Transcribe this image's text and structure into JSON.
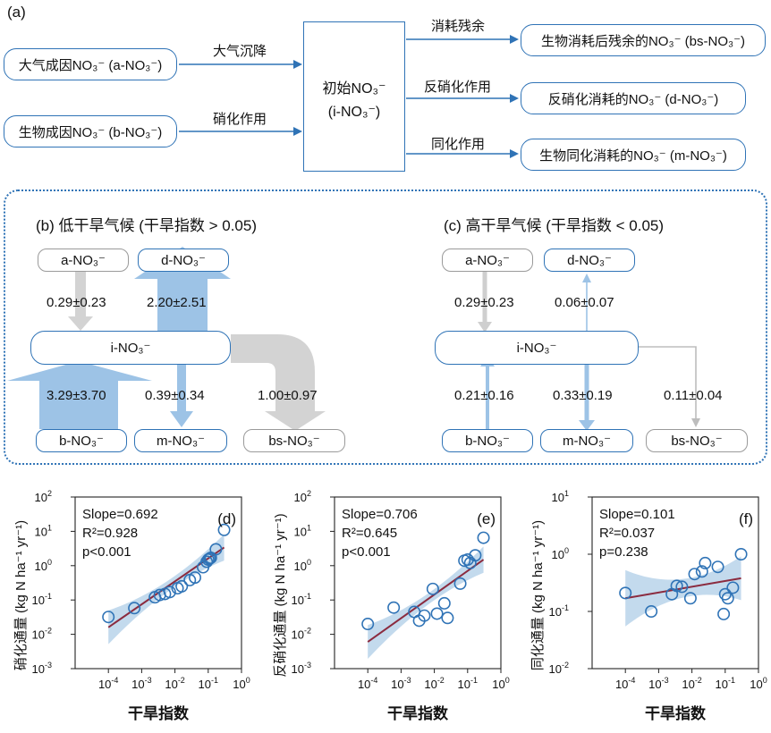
{
  "panel_a": {
    "label": "(a)",
    "sources": [
      {
        "id": "a",
        "text": "大气成因NO₃⁻ (a-NO₃⁻)"
      },
      {
        "id": "b",
        "text": "生物成因NO₃⁻ (b-NO₃⁻)"
      }
    ],
    "center": {
      "line1": "初始NO₃⁻",
      "line2": "(i-NO₃⁻)"
    },
    "input_labels": [
      "大气沉降",
      "硝化作用"
    ],
    "output_labels": [
      "消耗残余",
      "反硝化作用",
      "同化作用"
    ],
    "outputs": [
      {
        "id": "bs",
        "text": "生物消耗后残余的NO₃⁻ (bs-NO₃⁻)"
      },
      {
        "id": "d",
        "text": "反硝化消耗的NO₃⁻ (d-NO₃⁻)"
      },
      {
        "id": "m",
        "text": "生物同化消耗的NO₃⁻ (m-NO₃⁻)"
      }
    ]
  },
  "panel_b": {
    "title": "(b) 低干旱气候 (干旱指数 > 0.05)",
    "nodes": {
      "a": "a-NO₃⁻",
      "d": "d-NO₃⁻",
      "i": "i-NO₃⁻",
      "b": "b-NO₃⁻",
      "m": "m-NO₃⁻",
      "bs": "bs-NO₃⁻"
    },
    "flows": {
      "a": "0.29±0.23",
      "d": "2.20±2.51",
      "b": "3.29±3.70",
      "m": "0.39±0.34",
      "bs": "1.00±0.97"
    }
  },
  "panel_c": {
    "title": "(c) 高干旱气候 (干旱指数 < 0.05)",
    "nodes": {
      "a": "a-NO₃⁻",
      "d": "d-NO₃⁻",
      "i": "i-NO₃⁻",
      "b": "b-NO₃⁻",
      "m": "m-NO₃⁻",
      "bs": "bs-NO₃⁻"
    },
    "flows": {
      "a": "0.29±0.23",
      "d": "0.06±0.07",
      "b": "0.21±0.16",
      "m": "0.33±0.19",
      "bs": "0.11±0.04"
    }
  },
  "colors": {
    "blue": "#2f73b6",
    "light_blue": "#9dc3e6",
    "gray": "#d0d0d0",
    "dotted": "#2f73b6",
    "fit_line": "#8b2b3f",
    "band": "#b8d4ea"
  },
  "chart_data": [
    {
      "type": "scatter",
      "panel": "(d)",
      "xscale": "log",
      "yscale": "log",
      "xlabel": "干旱指数",
      "ylabel": "硝化通量 (kg N ha⁻¹ yr⁻¹)",
      "xlim": [
        1e-05,
        1
      ],
      "ylim": [
        0.001,
        100
      ],
      "xticks": [
        "10⁻⁴",
        "10⁻³",
        "10⁻²",
        "10⁻¹",
        "10⁰"
      ],
      "yticks": [
        "10²",
        "10¹",
        "10⁰",
        "10⁻¹",
        "10⁻²",
        "10⁻³"
      ],
      "stats": [
        "Slope=0.692",
        "R²=0.928",
        "p<0.001"
      ],
      "points": [
        [
          0.0001,
          0.032
        ],
        [
          0.0006,
          0.058
        ],
        [
          0.0025,
          0.12
        ],
        [
          0.0035,
          0.14
        ],
        [
          0.005,
          0.15
        ],
        [
          0.007,
          0.17
        ],
        [
          0.012,
          0.22
        ],
        [
          0.016,
          0.25
        ],
        [
          0.028,
          0.38
        ],
        [
          0.04,
          0.45
        ],
        [
          0.07,
          0.9
        ],
        [
          0.09,
          1.3
        ],
        [
          0.1,
          1.5
        ],
        [
          0.11,
          1.6
        ],
        [
          0.12,
          1.7
        ],
        [
          0.17,
          3.0
        ],
        [
          0.3,
          11
        ]
      ],
      "fit": [
        [
          0.0001,
          0.016
        ],
        [
          0.3,
          3.4
        ]
      ]
    },
    {
      "type": "scatter",
      "panel": "(e)",
      "xscale": "log",
      "yscale": "log",
      "xlabel": "干旱指数",
      "ylabel": "反硝化通量 (kg N ha⁻¹ yr⁻¹)",
      "xlim": [
        1e-05,
        1
      ],
      "ylim": [
        0.001,
        100
      ],
      "xticks": [
        "10⁻⁴",
        "10⁻³",
        "10⁻²",
        "10⁻¹",
        "10⁰"
      ],
      "yticks": [
        "10²",
        "10¹",
        "10⁰",
        "10⁻¹",
        "10⁻²",
        "10⁻³"
      ],
      "stats": [
        "Slope=0.706",
        "R²=0.645",
        "p<0.001"
      ],
      "points": [
        [
          0.0001,
          0.02
        ],
        [
          0.0006,
          0.06
        ],
        [
          0.0025,
          0.045
        ],
        [
          0.0035,
          0.025
        ],
        [
          0.005,
          0.035
        ],
        [
          0.009,
          0.21
        ],
        [
          0.012,
          0.04
        ],
        [
          0.02,
          0.08
        ],
        [
          0.025,
          0.03
        ],
        [
          0.06,
          0.3
        ],
        [
          0.08,
          1.4
        ],
        [
          0.1,
          1.5
        ],
        [
          0.12,
          1.2
        ],
        [
          0.17,
          2.0
        ],
        [
          0.3,
          6.5
        ]
      ],
      "fit": [
        [
          0.0001,
          0.006
        ],
        [
          0.3,
          1.5
        ]
      ]
    },
    {
      "type": "scatter",
      "panel": "(f)",
      "xscale": "log",
      "yscale": "log",
      "xlabel": "干旱指数",
      "ylabel": "同化通量 (kg N ha⁻¹ yr⁻¹)",
      "xlim": [
        1e-05,
        1
      ],
      "ylim": [
        0.01,
        10
      ],
      "xticks": [
        "10⁻⁴",
        "10⁻³",
        "10⁻²",
        "10⁻¹",
        "10⁰"
      ],
      "yticks": [
        "10¹",
        "10⁰",
        "10⁻¹",
        "10⁻²"
      ],
      "stats": [
        "Slope=0.101",
        "R²=0.037",
        "p=0.238"
      ],
      "points": [
        [
          0.0001,
          0.21
        ],
        [
          0.0006,
          0.1
        ],
        [
          0.0025,
          0.2
        ],
        [
          0.0035,
          0.28
        ],
        [
          0.005,
          0.27
        ],
        [
          0.009,
          0.17
        ],
        [
          0.012,
          0.45
        ],
        [
          0.02,
          0.5
        ],
        [
          0.025,
          0.7
        ],
        [
          0.06,
          0.6
        ],
        [
          0.09,
          0.09
        ],
        [
          0.1,
          0.2
        ],
        [
          0.12,
          0.17
        ],
        [
          0.17,
          0.26
        ],
        [
          0.3,
          1.0
        ]
      ],
      "fit": [
        [
          0.0001,
          0.17
        ],
        [
          0.3,
          0.38
        ]
      ]
    }
  ]
}
